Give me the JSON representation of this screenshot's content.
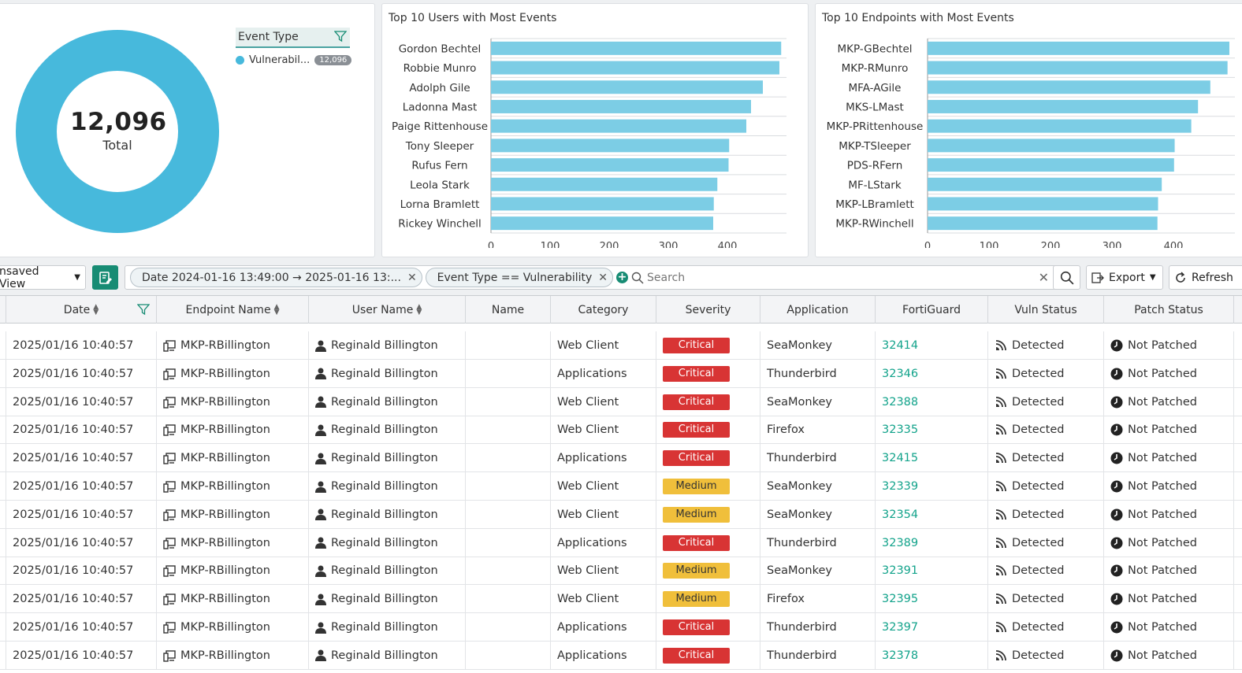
{
  "donut": {
    "total_value": "12,096",
    "total_label": "Total",
    "legend_title": "Event Type",
    "legend_items": [
      {
        "label": "Vulnerabil...",
        "count": "12,096",
        "color": "#47b9dc"
      }
    ]
  },
  "colors": {
    "accent": "#178c74",
    "bar": "#7ccde5",
    "critical": "#d83434",
    "medium": "#f0bf3b",
    "link": "#13a38b",
    "donut": "#47b9dc"
  },
  "chart_data": [
    {
      "type": "bar",
      "orientation": "horizontal",
      "title": "Top 10 Users with Most Events",
      "categories": [
        "Gordon Bechtel",
        "Robbie Munro",
        "Adolph Gile",
        "Ladonna Mast",
        "Paige Rittenhouse",
        "Tony Sleeper",
        "Rufus Fern",
        "Leola Stark",
        "Lorna Bramlett",
        "Rickey Winchell"
      ],
      "values": [
        491,
        488,
        460,
        440,
        432,
        403,
        402,
        383,
        377,
        376
      ],
      "xticks": [
        "0",
        "100",
        "200",
        "300",
        "400"
      ],
      "xlim": [
        0,
        500
      ],
      "grid": true
    },
    {
      "type": "bar",
      "orientation": "horizontal",
      "title": "Top 10 Endpoints with Most Events",
      "categories": [
        "MKP-GBechtel",
        "MKP-RMunro",
        "MFA-AGile",
        "MKS-LMast",
        "MKP-PRittenhouse",
        "MKP-TSleeper",
        "PDS-RFern",
        "MF-LStark",
        "MKP-LBramlett",
        "MKP-RWinchell"
      ],
      "values": [
        491,
        488,
        460,
        440,
        429,
        402,
        401,
        381,
        375,
        374
      ],
      "xticks": [
        "0",
        "100",
        "200",
        "300",
        "400"
      ],
      "xlim": [
        0,
        500
      ],
      "grid": true
    }
  ],
  "toolbar": {
    "saved_view": "nsaved View",
    "filters": [
      "Date 2024-01-16 13:49:00 → 2025-01-16 13:...",
      "Event Type == Vulnerability"
    ],
    "search_placeholder": "Search",
    "export_label": "Export",
    "refresh_label": "Refresh"
  },
  "table": {
    "headers": {
      "date": "Date",
      "endpoint": "Endpoint Name",
      "user": "User Name",
      "name": "Name",
      "category": "Category",
      "severity": "Severity",
      "application": "Application",
      "fortiguard": "FortiGuard",
      "vuln_status": "Vuln Status",
      "patch_status": "Patch Status"
    },
    "rows": [
      {
        "date": "2025/01/16 10:40:57",
        "endpoint": "MKP-RBillington",
        "user": "Reginald Billington",
        "name": "",
        "category": "Web Client",
        "severity": "Critical",
        "application": "SeaMonkey",
        "fortiguard": "32414",
        "vuln_status": "Detected",
        "patch_status": "Not Patched"
      },
      {
        "date": "2025/01/16 10:40:57",
        "endpoint": "MKP-RBillington",
        "user": "Reginald Billington",
        "name": "",
        "category": "Applications",
        "severity": "Critical",
        "application": "Thunderbird",
        "fortiguard": "32346",
        "vuln_status": "Detected",
        "patch_status": "Not Patched"
      },
      {
        "date": "2025/01/16 10:40:57",
        "endpoint": "MKP-RBillington",
        "user": "Reginald Billington",
        "name": "",
        "category": "Web Client",
        "severity": "Critical",
        "application": "SeaMonkey",
        "fortiguard": "32388",
        "vuln_status": "Detected",
        "patch_status": "Not Patched"
      },
      {
        "date": "2025/01/16 10:40:57",
        "endpoint": "MKP-RBillington",
        "user": "Reginald Billington",
        "name": "",
        "category": "Web Client",
        "severity": "Critical",
        "application": "Firefox",
        "fortiguard": "32335",
        "vuln_status": "Detected",
        "patch_status": "Not Patched"
      },
      {
        "date": "2025/01/16 10:40:57",
        "endpoint": "MKP-RBillington",
        "user": "Reginald Billington",
        "name": "",
        "category": "Applications",
        "severity": "Critical",
        "application": "Thunderbird",
        "fortiguard": "32415",
        "vuln_status": "Detected",
        "patch_status": "Not Patched"
      },
      {
        "date": "2025/01/16 10:40:57",
        "endpoint": "MKP-RBillington",
        "user": "Reginald Billington",
        "name": "",
        "category": "Web Client",
        "severity": "Medium",
        "application": "SeaMonkey",
        "fortiguard": "32339",
        "vuln_status": "Detected",
        "patch_status": "Not Patched"
      },
      {
        "date": "2025/01/16 10:40:57",
        "endpoint": "MKP-RBillington",
        "user": "Reginald Billington",
        "name": "",
        "category": "Web Client",
        "severity": "Medium",
        "application": "SeaMonkey",
        "fortiguard": "32354",
        "vuln_status": "Detected",
        "patch_status": "Not Patched"
      },
      {
        "date": "2025/01/16 10:40:57",
        "endpoint": "MKP-RBillington",
        "user": "Reginald Billington",
        "name": "",
        "category": "Applications",
        "severity": "Critical",
        "application": "Thunderbird",
        "fortiguard": "32389",
        "vuln_status": "Detected",
        "patch_status": "Not Patched"
      },
      {
        "date": "2025/01/16 10:40:57",
        "endpoint": "MKP-RBillington",
        "user": "Reginald Billington",
        "name": "",
        "category": "Web Client",
        "severity": "Medium",
        "application": "SeaMonkey",
        "fortiguard": "32391",
        "vuln_status": "Detected",
        "patch_status": "Not Patched"
      },
      {
        "date": "2025/01/16 10:40:57",
        "endpoint": "MKP-RBillington",
        "user": "Reginald Billington",
        "name": "",
        "category": "Web Client",
        "severity": "Medium",
        "application": "Firefox",
        "fortiguard": "32395",
        "vuln_status": "Detected",
        "patch_status": "Not Patched"
      },
      {
        "date": "2025/01/16 10:40:57",
        "endpoint": "MKP-RBillington",
        "user": "Reginald Billington",
        "name": "",
        "category": "Applications",
        "severity": "Critical",
        "application": "Thunderbird",
        "fortiguard": "32397",
        "vuln_status": "Detected",
        "patch_status": "Not Patched"
      },
      {
        "date": "2025/01/16 10:40:57",
        "endpoint": "MKP-RBillington",
        "user": "Reginald Billington",
        "name": "",
        "category": "Applications",
        "severity": "Critical",
        "application": "Thunderbird",
        "fortiguard": "32378",
        "vuln_status": "Detected",
        "patch_status": "Not Patched"
      }
    ]
  }
}
